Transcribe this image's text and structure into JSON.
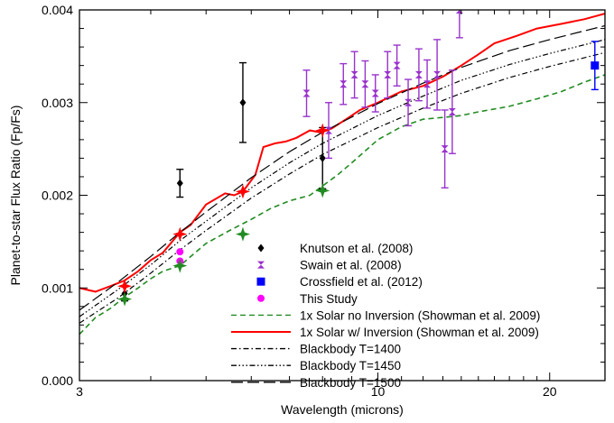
{
  "chart_data": {
    "type": "scatter",
    "title": "",
    "xlabel": "Wavelength (microns)",
    "ylabel": "Planet-to-star Flux Ratio (Fp/Fs)",
    "x_scale": "log",
    "xlim": [
      3,
      25
    ],
    "ylim": [
      0.0,
      0.004
    ],
    "x_ticks": [
      3,
      10,
      20
    ],
    "x_tick_labels": [
      "3",
      "10",
      "20"
    ],
    "y_ticks": [
      0.0,
      0.001,
      0.002,
      0.003,
      0.004
    ],
    "y_tick_labels": [
      "0.000",
      "0.001",
      "0.002",
      "0.003",
      "0.004"
    ],
    "grid": false,
    "legend_position": "bottom-right",
    "series": [
      {
        "name": "1x Solar w/ Inversion (Showman et al. 2009)",
        "kind": "line",
        "color": "#ff0000",
        "dash": "solid",
        "x": [
          3.0,
          3.2,
          3.4,
          3.6,
          3.8,
          4.0,
          4.2,
          4.5,
          4.7,
          5.0,
          5.4,
          5.6,
          5.8,
          6.1,
          6.3,
          6.6,
          6.9,
          7.2,
          7.6,
          7.9,
          8.3,
          8.8,
          9.3,
          10.0,
          11.0,
          12.0,
          13.0,
          14.0,
          15.0,
          16.0,
          17.5,
          19.0,
          21.0,
          23.0,
          25.0
        ],
        "y": [
          0.001,
          0.00096,
          0.00102,
          0.00108,
          0.00118,
          0.0013,
          0.00138,
          0.0016,
          0.00168,
          0.0019,
          0.00202,
          0.002,
          0.00204,
          0.00222,
          0.00252,
          0.00256,
          0.00258,
          0.00262,
          0.0027,
          0.00268,
          0.00272,
          0.00282,
          0.00292,
          0.003,
          0.00312,
          0.00318,
          0.00328,
          0.0034,
          0.00352,
          0.00364,
          0.00372,
          0.0038,
          0.00385,
          0.0039,
          0.00396
        ]
      },
      {
        "name": "1x Solar no Inversion (Showman et al. 2009)",
        "kind": "line",
        "color": "#228b22",
        "dash": "6,4",
        "x": [
          3.0,
          3.2,
          3.4,
          3.6,
          3.8,
          4.0,
          4.2,
          4.5,
          5.0,
          5.5,
          6.0,
          6.5,
          7.0,
          7.6,
          8.0,
          8.5,
          9.0,
          10.0,
          11.0,
          12.0,
          13.0,
          14.0,
          15.0,
          17.0,
          19.0,
          21.0,
          23.0,
          25.0
        ],
        "y": [
          0.0005,
          0.00068,
          0.00078,
          0.0009,
          0.001,
          0.0011,
          0.00118,
          0.00124,
          0.00148,
          0.00162,
          0.00174,
          0.00186,
          0.00194,
          0.002,
          0.0021,
          0.00222,
          0.00235,
          0.0026,
          0.00274,
          0.00282,
          0.00284,
          0.00286,
          0.0029,
          0.00296,
          0.00304,
          0.00312,
          0.00322,
          0.0033
        ]
      },
      {
        "name": "Blackbody T=1400",
        "kind": "line",
        "color": "#000000",
        "dash": "6,3,1.5,3",
        "x": [
          3.0,
          3.5,
          4.0,
          4.5,
          5.0,
          6.0,
          7.0,
          8.0,
          10.0,
          12.0,
          14.0,
          17.0,
          20.0,
          25.0
        ],
        "y": [
          0.00062,
          0.00089,
          0.00116,
          0.00141,
          0.00162,
          0.00197,
          0.00223,
          0.00244,
          0.00273,
          0.00294,
          0.0031,
          0.00327,
          0.00339,
          0.00354
        ]
      },
      {
        "name": "Blackbody T=1450",
        "kind": "line",
        "color": "#000000",
        "dash": "6,2.5,1.5,2.5,1.5,2.5,1.5,2.5",
        "x": [
          3.0,
          3.5,
          4.0,
          4.5,
          5.0,
          6.0,
          7.0,
          8.0,
          10.0,
          12.0,
          14.0,
          17.0,
          20.0,
          25.0
        ],
        "y": [
          0.00069,
          0.00098,
          0.00125,
          0.00151,
          0.00172,
          0.00208,
          0.00235,
          0.00256,
          0.00286,
          0.00307,
          0.00324,
          0.00341,
          0.00353,
          0.00368
        ]
      },
      {
        "name": "Blackbody T=1500",
        "kind": "line",
        "color": "#000000",
        "dash": "13,5",
        "x": [
          3.0,
          3.5,
          4.0,
          4.5,
          5.0,
          6.0,
          7.0,
          8.0,
          10.0,
          12.0,
          14.0,
          17.0,
          20.0,
          25.0
        ],
        "y": [
          0.00076,
          0.00106,
          0.00134,
          0.0016,
          0.00182,
          0.00219,
          0.00247,
          0.00268,
          0.00299,
          0.00321,
          0.00338,
          0.00356,
          0.00368,
          0.00383
        ]
      },
      {
        "name": "Knutson et al. (2008)",
        "kind": "points",
        "marker": "diamond",
        "color": "#000000",
        "x": [
          3.6,
          4.5,
          5.8,
          8.0
        ],
        "y": [
          0.00094,
          0.00213,
          0.003,
          0.0024
        ],
        "err": [
          8e-05,
          0.00015,
          0.00043,
          0.00033
        ]
      },
      {
        "name": "Swain et al. (2008)",
        "kind": "points",
        "marker": "hourglass",
        "color": "#9932cc",
        "x": [
          7.5,
          8.2,
          8.7,
          9.1,
          9.5,
          9.9,
          10.4,
          10.8,
          11.3,
          11.8,
          12.2,
          12.7,
          13.1,
          13.5,
          13.9
        ],
        "y": [
          0.0031,
          0.0027,
          0.0032,
          0.0033,
          0.0032,
          0.0031,
          0.0033,
          0.0034,
          0.003,
          0.0033,
          0.0032,
          0.0033,
          0.0025,
          0.0029,
          0.004
        ],
        "err": [
          0.00025,
          0.0003,
          0.00022,
          0.00025,
          0.00025,
          0.0002,
          0.00025,
          0.00022,
          0.00025,
          0.00028,
          0.00026,
          0.00038,
          0.00042,
          0.00045,
          0.0003
        ]
      },
      {
        "name": "Crossfield et al. (2012)",
        "kind": "points",
        "marker": "square",
        "color": "#0000ff",
        "x": [
          24.0
        ],
        "y": [
          0.0034
        ],
        "err": [
          0.00026
        ]
      },
      {
        "name": "This Study",
        "kind": "points",
        "marker": "circle",
        "color": "#ff00ff",
        "x": [
          4.5,
          4.5
        ],
        "y": [
          0.00139,
          0.00129
        ],
        "err": [
          0,
          0
        ]
      },
      {
        "name": "",
        "kind": "points",
        "marker": "star4",
        "color": "#228b22",
        "x": [
          3.6,
          4.5,
          5.8,
          8.0
        ],
        "y": [
          0.00088,
          0.00124,
          0.00158,
          0.00205
        ],
        "err": [
          0,
          0,
          0,
          0
        ]
      },
      {
        "name": "",
        "kind": "points",
        "marker": "star4",
        "color": "#ff0000",
        "x": [
          3.6,
          4.5,
          5.8,
          8.0
        ],
        "y": [
          0.00102,
          0.00158,
          0.00204,
          0.0027
        ],
        "err": [
          0,
          0,
          0,
          0
        ]
      }
    ],
    "legend": [
      {
        "label": "Knutson et al. (2008)",
        "marker": "diamond",
        "color": "#000000"
      },
      {
        "label": "Swain et al. (2008)",
        "marker": "hourglass",
        "color": "#9932cc"
      },
      {
        "label": "Crossfield et al. (2012)",
        "marker": "square",
        "color": "#0000ff"
      },
      {
        "label": "This Study",
        "marker": "circle",
        "color": "#ff00ff"
      },
      {
        "label": "1x Solar no Inversion (Showman et al. 2009)",
        "line": "6,4",
        "color": "#228b22"
      },
      {
        "label": "1x Solar w/ Inversion (Showman et al. 2009)",
        "line": "solid",
        "color": "#ff0000"
      },
      {
        "label": "Blackbody T=1400",
        "line": "6,3,1.5,3",
        "color": "#000000"
      },
      {
        "label": "Blackbody T=1450",
        "line": "6,2.5,1.5,2.5,1.5,2.5,1.5,2.5",
        "color": "#000000"
      },
      {
        "label": "Blackbody T=1500",
        "line": "13,5",
        "color": "#000000"
      }
    ]
  }
}
